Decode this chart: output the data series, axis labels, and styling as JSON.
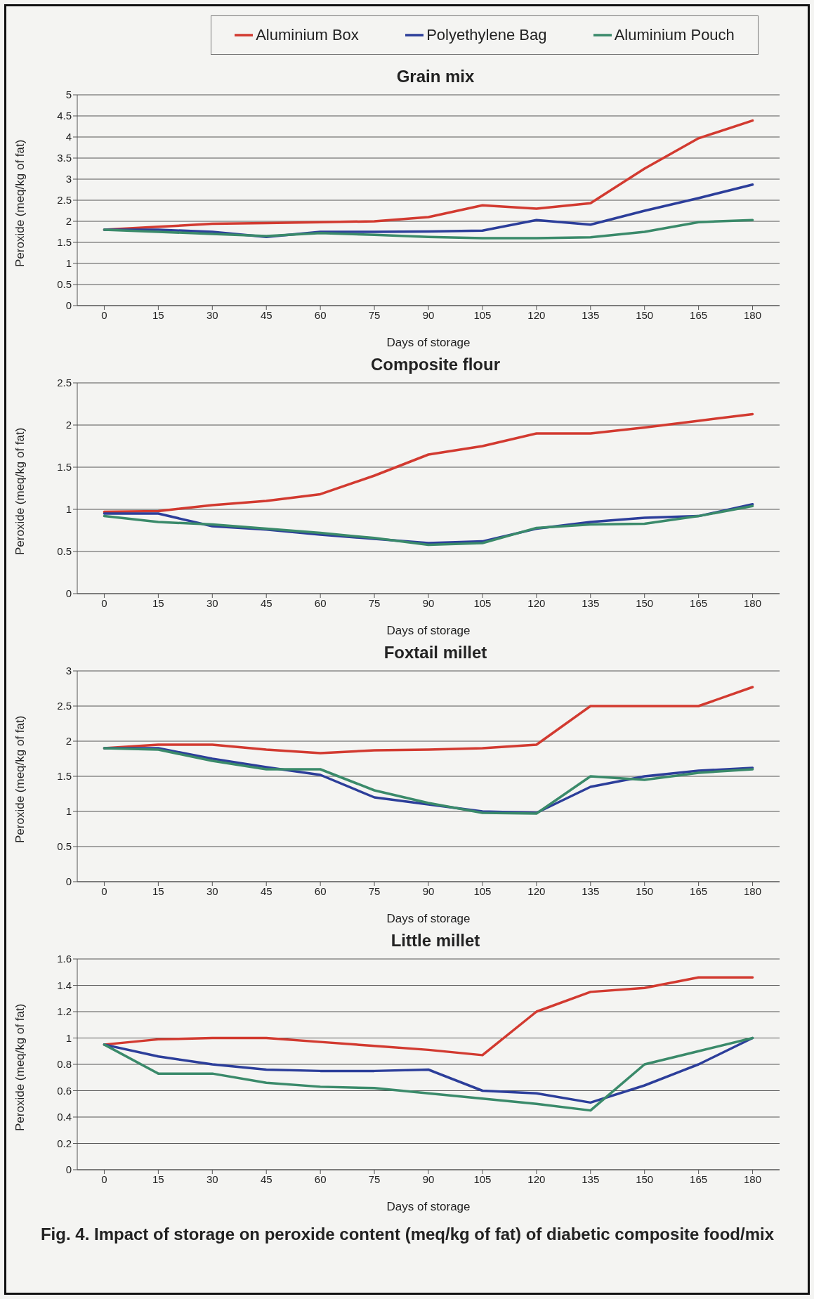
{
  "chart_data": [
    {
      "type": "line",
      "title": "Grain mix",
      "xlabel": "Days of storage",
      "ylabel": "Peroxide (meq/kg of fat)",
      "x": [
        0,
        15,
        30,
        45,
        60,
        75,
        90,
        105,
        120,
        135,
        150,
        165,
        180
      ],
      "xlim": [
        -7.5,
        187.5
      ],
      "xticks": [
        0,
        15,
        30,
        45,
        60,
        75,
        90,
        105,
        120,
        135,
        150,
        165,
        180
      ],
      "ylim": [
        0,
        5
      ],
      "yticks": [
        0,
        0.5,
        1,
        1.5,
        2,
        2.5,
        3,
        3.5,
        4,
        4.5,
        5
      ],
      "grid": "y",
      "legend": "top",
      "marker": "none",
      "annotations": [
        "Fig. 4. Impact of storage on peroxide content (meq/kg of fat) of diabetic composite food/mix"
      ],
      "series": [
        {
          "name": "Aluminium Box",
          "color": "#d23a30",
          "values": [
            1.8,
            1.87,
            1.94,
            1.96,
            1.98,
            2.0,
            2.1,
            2.38,
            2.3,
            2.43,
            3.25,
            3.97,
            4.39
          ]
        },
        {
          "name": "Polyethylene Bag",
          "color": "#2c3e9a",
          "values": [
            1.8,
            1.8,
            1.75,
            1.63,
            1.75,
            1.75,
            1.76,
            1.78,
            2.03,
            1.92,
            2.25,
            2.55,
            2.87
          ]
        },
        {
          "name": "Aluminium Pouch",
          "color": "#3a8a6a",
          "values": [
            1.8,
            1.75,
            1.7,
            1.65,
            1.72,
            1.68,
            1.63,
            1.6,
            1.6,
            1.62,
            1.75,
            1.98,
            2.03
          ]
        }
      ]
    },
    {
      "type": "line",
      "title": "Composite flour",
      "xlabel": "Days of storage",
      "ylabel": "Peroxide (meq/kg of fat)",
      "x": [
        0,
        15,
        30,
        45,
        60,
        75,
        90,
        105,
        120,
        135,
        150,
        165,
        180
      ],
      "xlim": [
        -7.5,
        187.5
      ],
      "xticks": [
        0,
        15,
        30,
        45,
        60,
        75,
        90,
        105,
        120,
        135,
        150,
        165,
        180
      ],
      "ylim": [
        0,
        2.5
      ],
      "yticks": [
        0,
        0.5,
        1,
        1.5,
        2,
        2.5
      ],
      "grid": "y",
      "marker": "none",
      "series": [
        {
          "color": "#d23a30",
          "values": [
            0.97,
            0.98,
            1.05,
            1.1,
            1.18,
            1.4,
            1.65,
            1.75,
            1.9,
            1.9,
            1.97,
            2.05,
            2.13
          ]
        },
        {
          "color": "#2c3e9a",
          "values": [
            0.95,
            0.95,
            0.8,
            0.76,
            0.7,
            0.65,
            0.6,
            0.62,
            0.77,
            0.85,
            0.9,
            0.92,
            1.06
          ]
        },
        {
          "color": "#3a8a6a",
          "values": [
            0.92,
            0.85,
            0.82,
            0.77,
            0.72,
            0.66,
            0.58,
            0.6,
            0.78,
            0.82,
            0.83,
            0.92,
            1.04
          ]
        }
      ]
    },
    {
      "type": "line",
      "title": "Foxtail millet",
      "xlabel": "Days of storage",
      "ylabel": "Peroxide (meq/kg of fat)",
      "x": [
        0,
        15,
        30,
        45,
        60,
        75,
        90,
        105,
        120,
        135,
        150,
        165,
        180
      ],
      "xlim": [
        -7.5,
        187.5
      ],
      "xticks": [
        0,
        15,
        30,
        45,
        60,
        75,
        90,
        105,
        120,
        135,
        150,
        165,
        180
      ],
      "ylim": [
        0,
        3
      ],
      "yticks": [
        0,
        0.5,
        1,
        1.5,
        2,
        2.5,
        3
      ],
      "grid": "y",
      "marker": "none",
      "series": [
        {
          "color": "#d23a30",
          "values": [
            1.9,
            1.95,
            1.95,
            1.88,
            1.83,
            1.87,
            1.88,
            1.9,
            1.95,
            2.5,
            2.5,
            2.5,
            2.77
          ]
        },
        {
          "color": "#2c3e9a",
          "values": [
            1.9,
            1.9,
            1.75,
            1.63,
            1.52,
            1.2,
            1.1,
            1.0,
            0.98,
            1.35,
            1.5,
            1.58,
            1.62
          ]
        },
        {
          "color": "#3a8a6a",
          "values": [
            1.9,
            1.88,
            1.72,
            1.6,
            1.6,
            1.3,
            1.12,
            0.98,
            0.97,
            1.5,
            1.45,
            1.55,
            1.6
          ]
        }
      ]
    },
    {
      "type": "line",
      "title": "Little millet",
      "xlabel": "Days of storage",
      "ylabel": "Peroxide (meq/kg of fat)",
      "x": [
        0,
        15,
        30,
        45,
        60,
        75,
        90,
        105,
        120,
        135,
        150,
        165,
        180
      ],
      "xlim": [
        -7.5,
        187.5
      ],
      "xticks": [
        0,
        15,
        30,
        45,
        60,
        75,
        90,
        105,
        120,
        135,
        150,
        165,
        180
      ],
      "ylim": [
        0,
        1.6
      ],
      "yticks": [
        0,
        0.2,
        0.4,
        0.6,
        0.8,
        1,
        1.2,
        1.4,
        1.6
      ],
      "grid": "y",
      "marker": "none",
      "series": [
        {
          "color": "#d23a30",
          "values": [
            0.95,
            0.99,
            1.0,
            1.0,
            0.97,
            0.94,
            0.91,
            0.87,
            1.2,
            1.35,
            1.38,
            1.46,
            1.46
          ]
        },
        {
          "color": "#2c3e9a",
          "values": [
            0.95,
            0.86,
            0.8,
            0.76,
            0.75,
            0.75,
            0.76,
            0.6,
            0.58,
            0.51,
            0.64,
            0.8,
            1.0
          ]
        },
        {
          "color": "#3a8a6a",
          "values": [
            0.95,
            0.73,
            0.73,
            0.66,
            0.63,
            0.62,
            0.58,
            0.54,
            0.5,
            0.45,
            0.8,
            0.9,
            1.0
          ]
        }
      ]
    }
  ]
}
